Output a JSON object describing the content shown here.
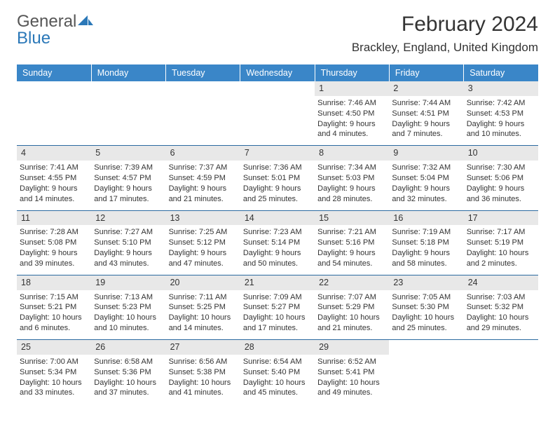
{
  "brand": {
    "word1": "General",
    "word2": "Blue"
  },
  "title": {
    "month": "February 2024",
    "location": "Brackley, England, United Kingdom"
  },
  "colors": {
    "headerBg": "#3a86c8",
    "headerText": "#ffffff",
    "dayBg": "#e8e8e8",
    "rowBorder": "#2b6aa0",
    "text": "#333333"
  },
  "weekdays": [
    "Sunday",
    "Monday",
    "Tuesday",
    "Wednesday",
    "Thursday",
    "Friday",
    "Saturday"
  ],
  "weeks": [
    [
      null,
      null,
      null,
      null,
      {
        "d": "1",
        "sr": "Sunrise: 7:46 AM",
        "ss": "Sunset: 4:50 PM",
        "dl1": "Daylight: 9 hours",
        "dl2": "and 4 minutes."
      },
      {
        "d": "2",
        "sr": "Sunrise: 7:44 AM",
        "ss": "Sunset: 4:51 PM",
        "dl1": "Daylight: 9 hours",
        "dl2": "and 7 minutes."
      },
      {
        "d": "3",
        "sr": "Sunrise: 7:42 AM",
        "ss": "Sunset: 4:53 PM",
        "dl1": "Daylight: 9 hours",
        "dl2": "and 10 minutes."
      }
    ],
    [
      {
        "d": "4",
        "sr": "Sunrise: 7:41 AM",
        "ss": "Sunset: 4:55 PM",
        "dl1": "Daylight: 9 hours",
        "dl2": "and 14 minutes."
      },
      {
        "d": "5",
        "sr": "Sunrise: 7:39 AM",
        "ss": "Sunset: 4:57 PM",
        "dl1": "Daylight: 9 hours",
        "dl2": "and 17 minutes."
      },
      {
        "d": "6",
        "sr": "Sunrise: 7:37 AM",
        "ss": "Sunset: 4:59 PM",
        "dl1": "Daylight: 9 hours",
        "dl2": "and 21 minutes."
      },
      {
        "d": "7",
        "sr": "Sunrise: 7:36 AM",
        "ss": "Sunset: 5:01 PM",
        "dl1": "Daylight: 9 hours",
        "dl2": "and 25 minutes."
      },
      {
        "d": "8",
        "sr": "Sunrise: 7:34 AM",
        "ss": "Sunset: 5:03 PM",
        "dl1": "Daylight: 9 hours",
        "dl2": "and 28 minutes."
      },
      {
        "d": "9",
        "sr": "Sunrise: 7:32 AM",
        "ss": "Sunset: 5:04 PM",
        "dl1": "Daylight: 9 hours",
        "dl2": "and 32 minutes."
      },
      {
        "d": "10",
        "sr": "Sunrise: 7:30 AM",
        "ss": "Sunset: 5:06 PM",
        "dl1": "Daylight: 9 hours",
        "dl2": "and 36 minutes."
      }
    ],
    [
      {
        "d": "11",
        "sr": "Sunrise: 7:28 AM",
        "ss": "Sunset: 5:08 PM",
        "dl1": "Daylight: 9 hours",
        "dl2": "and 39 minutes."
      },
      {
        "d": "12",
        "sr": "Sunrise: 7:27 AM",
        "ss": "Sunset: 5:10 PM",
        "dl1": "Daylight: 9 hours",
        "dl2": "and 43 minutes."
      },
      {
        "d": "13",
        "sr": "Sunrise: 7:25 AM",
        "ss": "Sunset: 5:12 PM",
        "dl1": "Daylight: 9 hours",
        "dl2": "and 47 minutes."
      },
      {
        "d": "14",
        "sr": "Sunrise: 7:23 AM",
        "ss": "Sunset: 5:14 PM",
        "dl1": "Daylight: 9 hours",
        "dl2": "and 50 minutes."
      },
      {
        "d": "15",
        "sr": "Sunrise: 7:21 AM",
        "ss": "Sunset: 5:16 PM",
        "dl1": "Daylight: 9 hours",
        "dl2": "and 54 minutes."
      },
      {
        "d": "16",
        "sr": "Sunrise: 7:19 AM",
        "ss": "Sunset: 5:18 PM",
        "dl1": "Daylight: 9 hours",
        "dl2": "and 58 minutes."
      },
      {
        "d": "17",
        "sr": "Sunrise: 7:17 AM",
        "ss": "Sunset: 5:19 PM",
        "dl1": "Daylight: 10 hours",
        "dl2": "and 2 minutes."
      }
    ],
    [
      {
        "d": "18",
        "sr": "Sunrise: 7:15 AM",
        "ss": "Sunset: 5:21 PM",
        "dl1": "Daylight: 10 hours",
        "dl2": "and 6 minutes."
      },
      {
        "d": "19",
        "sr": "Sunrise: 7:13 AM",
        "ss": "Sunset: 5:23 PM",
        "dl1": "Daylight: 10 hours",
        "dl2": "and 10 minutes."
      },
      {
        "d": "20",
        "sr": "Sunrise: 7:11 AM",
        "ss": "Sunset: 5:25 PM",
        "dl1": "Daylight: 10 hours",
        "dl2": "and 14 minutes."
      },
      {
        "d": "21",
        "sr": "Sunrise: 7:09 AM",
        "ss": "Sunset: 5:27 PM",
        "dl1": "Daylight: 10 hours",
        "dl2": "and 17 minutes."
      },
      {
        "d": "22",
        "sr": "Sunrise: 7:07 AM",
        "ss": "Sunset: 5:29 PM",
        "dl1": "Daylight: 10 hours",
        "dl2": "and 21 minutes."
      },
      {
        "d": "23",
        "sr": "Sunrise: 7:05 AM",
        "ss": "Sunset: 5:30 PM",
        "dl1": "Daylight: 10 hours",
        "dl2": "and 25 minutes."
      },
      {
        "d": "24",
        "sr": "Sunrise: 7:03 AM",
        "ss": "Sunset: 5:32 PM",
        "dl1": "Daylight: 10 hours",
        "dl2": "and 29 minutes."
      }
    ],
    [
      {
        "d": "25",
        "sr": "Sunrise: 7:00 AM",
        "ss": "Sunset: 5:34 PM",
        "dl1": "Daylight: 10 hours",
        "dl2": "and 33 minutes."
      },
      {
        "d": "26",
        "sr": "Sunrise: 6:58 AM",
        "ss": "Sunset: 5:36 PM",
        "dl1": "Daylight: 10 hours",
        "dl2": "and 37 minutes."
      },
      {
        "d": "27",
        "sr": "Sunrise: 6:56 AM",
        "ss": "Sunset: 5:38 PM",
        "dl1": "Daylight: 10 hours",
        "dl2": "and 41 minutes."
      },
      {
        "d": "28",
        "sr": "Sunrise: 6:54 AM",
        "ss": "Sunset: 5:40 PM",
        "dl1": "Daylight: 10 hours",
        "dl2": "and 45 minutes."
      },
      {
        "d": "29",
        "sr": "Sunrise: 6:52 AM",
        "ss": "Sunset: 5:41 PM",
        "dl1": "Daylight: 10 hours",
        "dl2": "and 49 minutes."
      },
      null,
      null
    ]
  ]
}
